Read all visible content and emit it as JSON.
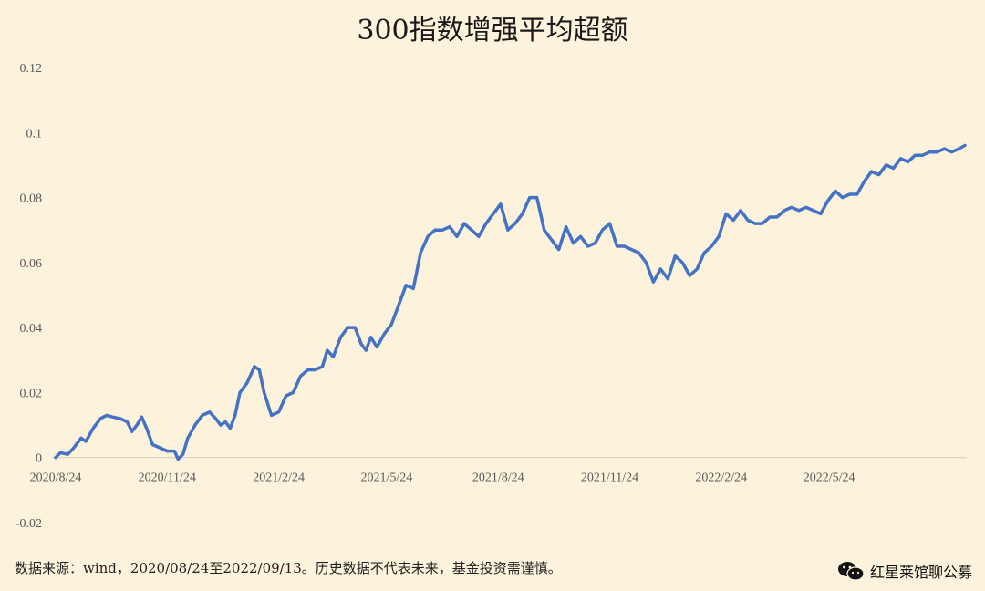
{
  "chart_data": {
    "type": "line",
    "title": "300指数增强平均超额",
    "xlabel": "",
    "ylabel": "",
    "ylim": [
      -0.02,
      0.12
    ],
    "y_ticks": [
      "0.12",
      "0.1",
      "0.08",
      "0.06",
      "0.04",
      "0.02",
      "0",
      "-0.02"
    ],
    "y_tick_values": [
      0.12,
      0.1,
      0.08,
      0.06,
      0.04,
      0.02,
      0,
      -0.02
    ],
    "x_tick_labels": [
      "2020/8/24",
      "2020/11/24",
      "2021/2/24",
      "2021/5/24",
      "2021/8/24",
      "2021/11/24",
      "2022/2/24",
      "2022/5/24"
    ],
    "x_range": [
      "2020/8/24",
      "2022/9/13"
    ],
    "grid": false,
    "line_color": "#4472c4",
    "series": [
      {
        "values": [
          [
            "2020/8/24",
            0.0
          ],
          [
            "2020/8/28",
            0.0015
          ],
          [
            "2020/9/3",
            0.001
          ],
          [
            "2020/9/8",
            0.003
          ],
          [
            "2020/9/14",
            0.006
          ],
          [
            "2020/9/18",
            0.005
          ],
          [
            "2020/9/24",
            0.009
          ],
          [
            "2020/9/30",
            0.012
          ],
          [
            "2020/10/5",
            0.013
          ],
          [
            "2020/10/10",
            0.0125
          ],
          [
            "2020/10/16",
            0.012
          ],
          [
            "2020/10/22",
            0.011
          ],
          [
            "2020/10/26",
            0.008
          ],
          [
            "2020/10/30",
            0.01
          ],
          [
            "2020/11/3",
            0.0125
          ],
          [
            "2020/11/7",
            0.009
          ],
          [
            "2020/11/12",
            0.004
          ],
          [
            "2020/11/18",
            0.003
          ],
          [
            "2020/11/24",
            0.002
          ],
          [
            "2020/11/30",
            0.002
          ],
          [
            "2020/12/3",
            -0.0005
          ],
          [
            "2020/12/7",
            0.001
          ],
          [
            "2020/12/11",
            0.006
          ],
          [
            "2020/12/17",
            0.01
          ],
          [
            "2020/12/23",
            0.013
          ],
          [
            "2020/12/29",
            0.014
          ],
          [
            "2021/1/3",
            0.012
          ],
          [
            "2021/1/7",
            0.01
          ],
          [
            "2021/1/11",
            0.011
          ],
          [
            "2021/1/15",
            0.009
          ],
          [
            "2021/1/19",
            0.013
          ],
          [
            "2021/1/23",
            0.02
          ],
          [
            "2021/1/29",
            0.023
          ],
          [
            "2021/2/4",
            0.028
          ],
          [
            "2021/2/8",
            0.027
          ],
          [
            "2021/2/12",
            0.02
          ],
          [
            "2021/2/18",
            0.013
          ],
          [
            "2021/2/24",
            0.014
          ],
          [
            "2021/3/2",
            0.019
          ],
          [
            "2021/3/8",
            0.02
          ],
          [
            "2021/3/14",
            0.025
          ],
          [
            "2021/3/20",
            0.027
          ],
          [
            "2021/3/26",
            0.027
          ],
          [
            "2021/4/1",
            0.028
          ],
          [
            "2021/4/5",
            0.033
          ],
          [
            "2021/4/10",
            0.031
          ],
          [
            "2021/4/16",
            0.037
          ],
          [
            "2021/4/22",
            0.04
          ],
          [
            "2021/4/28",
            0.04
          ],
          [
            "2021/5/3",
            0.035
          ],
          [
            "2021/5/7",
            0.033
          ],
          [
            "2021/5/11",
            0.037
          ],
          [
            "2021/5/16",
            0.034
          ],
          [
            "2021/5/22",
            0.038
          ],
          [
            "2021/5/28",
            0.041
          ],
          [
            "2021/6/3",
            0.047
          ],
          [
            "2021/6/9",
            0.053
          ],
          [
            "2021/6/15",
            0.052
          ],
          [
            "2021/6/21",
            0.063
          ],
          [
            "2021/6/27",
            0.068
          ],
          [
            "2021/7/3",
            0.07
          ],
          [
            "2021/7/9",
            0.07
          ],
          [
            "2021/7/15",
            0.071
          ],
          [
            "2021/7/21",
            0.068
          ],
          [
            "2021/7/27",
            0.072
          ],
          [
            "2021/8/2",
            0.07
          ],
          [
            "2021/8/8",
            0.068
          ],
          [
            "2021/8/14",
            0.072
          ],
          [
            "2021/8/20",
            0.075
          ],
          [
            "2021/8/26",
            0.078
          ],
          [
            "2021/9/1",
            0.07
          ],
          [
            "2021/9/7",
            0.072
          ],
          [
            "2021/9/13",
            0.075
          ],
          [
            "2021/9/19",
            0.08
          ],
          [
            "2021/9/25",
            0.08
          ],
          [
            "2021/10/1",
            0.07
          ],
          [
            "2021/10/7",
            0.067
          ],
          [
            "2021/10/13",
            0.064
          ],
          [
            "2021/10/19",
            0.071
          ],
          [
            "2021/10/25",
            0.066
          ],
          [
            "2021/10/31",
            0.068
          ],
          [
            "2021/11/6",
            0.065
          ],
          [
            "2021/11/12",
            0.066
          ],
          [
            "2021/11/18",
            0.07
          ],
          [
            "2021/11/24",
            0.072
          ],
          [
            "2021/11/30",
            0.065
          ],
          [
            "2021/12/6",
            0.065
          ],
          [
            "2021/12/12",
            0.064
          ],
          [
            "2021/12/18",
            0.063
          ],
          [
            "2021/12/24",
            0.06
          ],
          [
            "2021/12/30",
            0.054
          ],
          [
            "2022/1/5",
            0.058
          ],
          [
            "2022/1/11",
            0.055
          ],
          [
            "2022/1/17",
            0.062
          ],
          [
            "2022/1/23",
            0.06
          ],
          [
            "2022/1/29",
            0.056
          ],
          [
            "2022/2/4",
            0.058
          ],
          [
            "2022/2/10",
            0.063
          ],
          [
            "2022/2/16",
            0.065
          ],
          [
            "2022/2/22",
            0.068
          ],
          [
            "2022/2/28",
            0.075
          ],
          [
            "2022/3/6",
            0.073
          ],
          [
            "2022/3/12",
            0.076
          ],
          [
            "2022/3/18",
            0.073
          ],
          [
            "2022/3/24",
            0.072
          ],
          [
            "2022/3/30",
            0.072
          ],
          [
            "2022/4/5",
            0.074
          ],
          [
            "2022/4/11",
            0.074
          ],
          [
            "2022/4/17",
            0.076
          ],
          [
            "2022/4/23",
            0.077
          ],
          [
            "2022/4/29",
            0.076
          ],
          [
            "2022/5/5",
            0.077
          ],
          [
            "2022/5/11",
            0.076
          ],
          [
            "2022/5/17",
            0.075
          ],
          [
            "2022/5/23",
            0.079
          ],
          [
            "2022/5/29",
            0.082
          ],
          [
            "2022/6/4",
            0.08
          ],
          [
            "2022/6/10",
            0.081
          ],
          [
            "2022/6/16",
            0.081
          ],
          [
            "2022/6/22",
            0.085
          ],
          [
            "2022/6/28",
            0.088
          ],
          [
            "2022/7/4",
            0.087
          ],
          [
            "2022/7/10",
            0.09
          ],
          [
            "2022/7/16",
            0.089
          ],
          [
            "2022/7/22",
            0.092
          ],
          [
            "2022/7/28",
            0.091
          ],
          [
            "2022/8/3",
            0.093
          ],
          [
            "2022/8/9",
            0.093
          ],
          [
            "2022/8/15",
            0.094
          ],
          [
            "2022/8/21",
            0.094
          ],
          [
            "2022/8/27",
            0.095
          ],
          [
            "2022/9/2",
            0.094
          ],
          [
            "2022/9/8",
            0.095
          ],
          [
            "2022/9/13",
            0.096
          ]
        ]
      }
    ]
  },
  "footer": {
    "source": "数据来源：wind，2020/08/24至2022/09/13。历史数据不代表未来，基金投资需谨慎。",
    "watermark": "红星莱馆聊公募",
    "watermark_icon": "wechat-icon"
  }
}
